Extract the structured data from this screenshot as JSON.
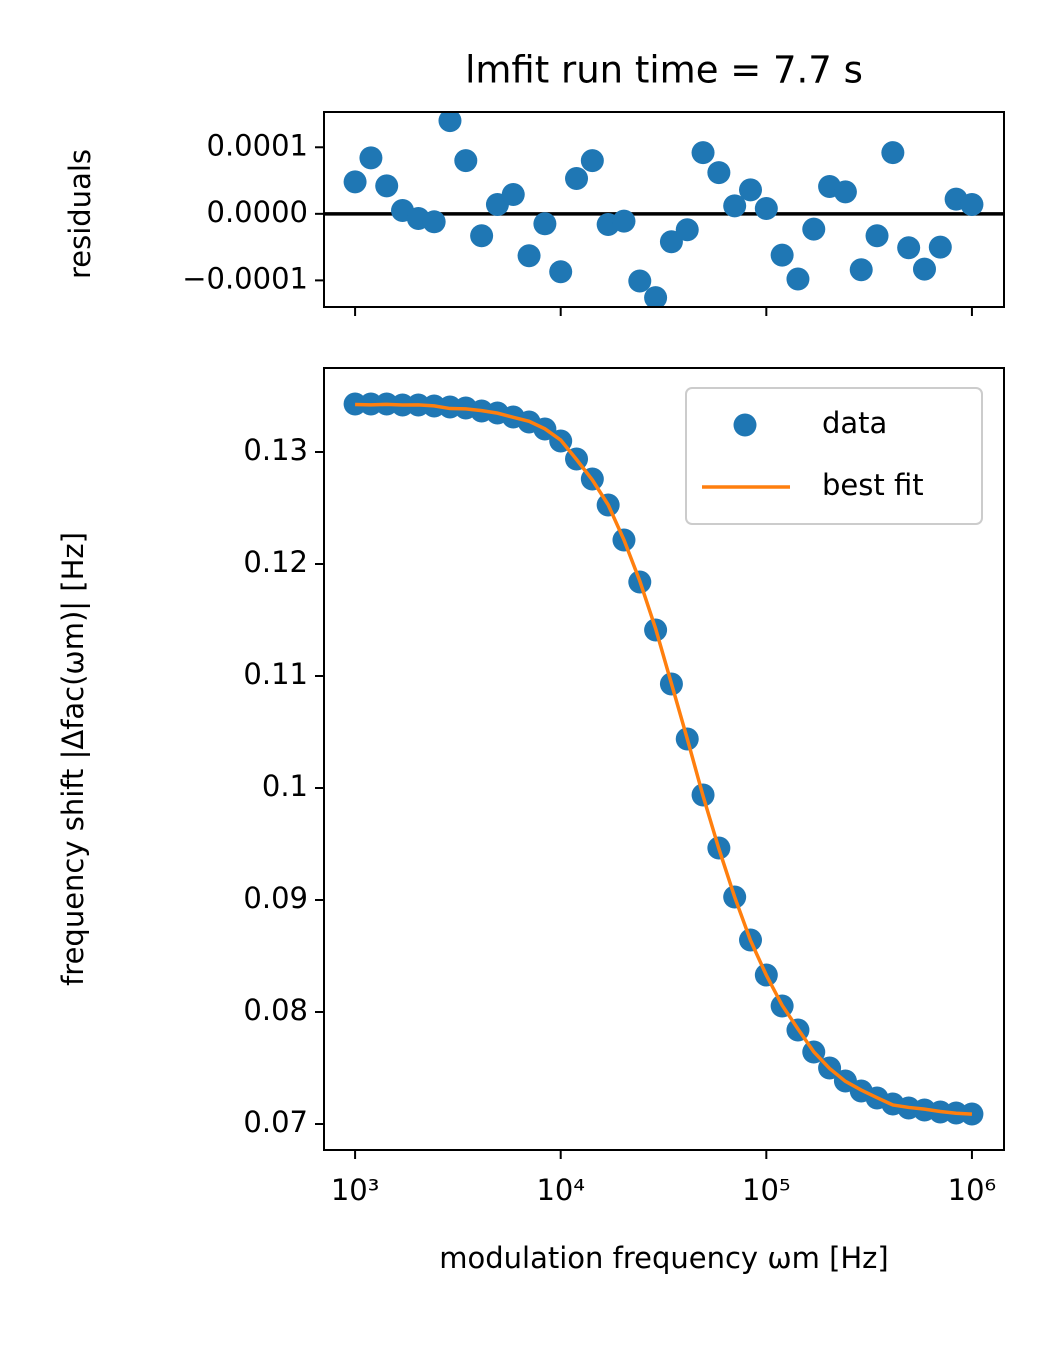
{
  "chart_data": [
    {
      "type": "scatter",
      "title": "lmfit run time = 7.7 s",
      "ylabel": "residuals",
      "x": [
        1000,
        1194,
        1425,
        1701,
        2031,
        2424,
        2894,
        3455,
        4125,
        4924,
        5878,
        7017,
        8377,
        10000,
        11938,
        14251,
        17013,
        20309,
        24245,
        28943,
        34551,
        41246,
        49239,
        58780,
        70170,
        83768,
        100000,
        119378,
        142510,
        170125,
        203092,
        242446,
        289427,
        345511,
        412463,
        492388,
        587802,
        701704,
        837678,
        1000000
      ],
      "values": [
        4.8e-05,
        8.4e-05,
        4.2e-05,
        5e-06,
        -7e-06,
        -1.2e-05,
        0.00014,
        8e-05,
        -3.3e-05,
        1.4e-05,
        2.9e-05,
        -6.3e-05,
        -1.5e-05,
        -8.7e-05,
        5.3e-05,
        8e-05,
        -1.6e-05,
        -1.1e-05,
        -0.000101,
        -0.000126,
        -4.2e-05,
        -2.4e-05,
        9.2e-05,
        6.2e-05,
        1.2e-05,
        3.6e-05,
        8e-06,
        -6.2e-05,
        -9.8e-05,
        -2.3e-05,
        4.1e-05,
        3.3e-05,
        -8.4e-05,
        -3.3e-05,
        9.2e-05,
        -5.1e-05,
        -8.3e-05,
        -5e-05,
        2.2e-05,
        1.4e-05
      ],
      "color": "#1f77b4",
      "hline": 0,
      "xscale": "log",
      "xlim": [
        706,
        1432000
      ],
      "xticks": [
        1000,
        10000,
        100000,
        1000000
      ],
      "show_xticklabels": false,
      "ylim": [
        -0.00014,
        0.000153
      ],
      "yticks": [
        {
          "value": -0.0001,
          "label": "−0.0001"
        },
        {
          "value": 0,
          "label": "0.0000"
        },
        {
          "value": 0.0001,
          "label": "0.0001"
        }
      ]
    },
    {
      "type": "line",
      "xlabel": "modulation frequency ωm [Hz]",
      "ylabel": "frequency shift |Δfac(ωm)| [Hz]",
      "x": [
        1000,
        1194,
        1425,
        1701,
        2031,
        2424,
        2894,
        3455,
        4125,
        4924,
        5878,
        7017,
        8377,
        10000,
        11938,
        14251,
        17013,
        20309,
        24245,
        28943,
        34551,
        41246,
        49239,
        58780,
        70170,
        83768,
        100000,
        119378,
        142510,
        170125,
        203092,
        242446,
        289427,
        345511,
        412463,
        492388,
        587802,
        701704,
        837678,
        1000000
      ],
      "series": [
        {
          "name": "data",
          "color": "#1f77b4",
          "marker": "o",
          "values": [
            0.13429,
            0.13429,
            0.13429,
            0.1342,
            0.1342,
            0.13411,
            0.13402,
            0.13393,
            0.13366,
            0.13348,
            0.13313,
            0.13268,
            0.13205,
            0.13098,
            0.12938,
            0.12759,
            0.12527,
            0.12214,
            0.11839,
            0.11411,
            0.10929,
            0.10438,
            0.09938,
            0.09464,
            0.09027,
            0.08643,
            0.0833,
            0.08054,
            0.07839,
            0.07643,
            0.075,
            0.07384,
            0.07295,
            0.07232,
            0.07179,
            0.07143,
            0.07125,
            0.07107,
            0.07098,
            0.07089
          ]
        },
        {
          "name": "best fit",
          "color": "#ff7f0e",
          "marker": "none",
          "values": [
            0.13424,
            0.13421,
            0.13425,
            0.1342,
            0.13421,
            0.13412,
            0.13388,
            0.13385,
            0.13369,
            0.13347,
            0.1331,
            0.13274,
            0.13207,
            0.13107,
            0.12933,
            0.12751,
            0.12529,
            0.12215,
            0.11849,
            0.11424,
            0.10933,
            0.1044,
            0.09929,
            0.09458,
            0.09026,
            0.08639,
            0.08329,
            0.0806,
            0.07849,
            0.07645,
            0.07496,
            0.07381,
            0.07303,
            0.07235,
            0.0717,
            0.07148,
            0.07133,
            0.07112,
            0.07096,
            0.07088
          ]
        }
      ],
      "xscale": "log",
      "legend": "upper right",
      "xlim": [
        706,
        1432000
      ],
      "xticks": [
        {
          "value": 1000,
          "label": "10³"
        },
        {
          "value": 10000,
          "label": "10⁴"
        },
        {
          "value": 100000,
          "label": "10⁵"
        },
        {
          "value": 1000000,
          "label": "10⁶"
        }
      ],
      "show_xticklabels": true,
      "ylim": [
        0.06768,
        0.1375
      ],
      "yticks": [
        0.07,
        0.08,
        0.09,
        0.1,
        0.11,
        0.12,
        0.13
      ]
    }
  ]
}
